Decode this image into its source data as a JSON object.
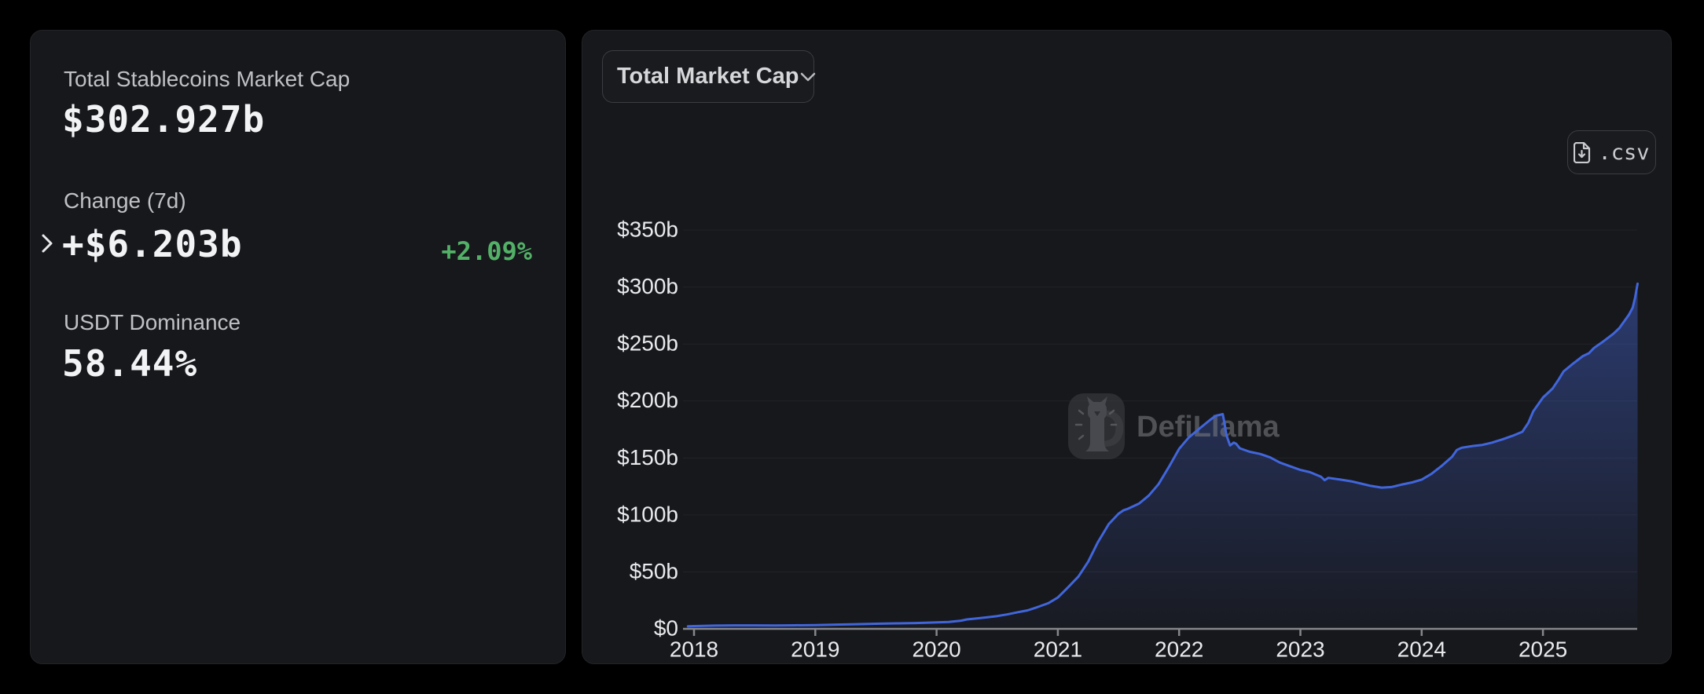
{
  "page": {
    "background": "#000000"
  },
  "stats_panel": {
    "market_cap": {
      "label": "Total Stablecoins Market Cap",
      "value": "$302.927b"
    },
    "change_7d": {
      "label": "Change (7d)",
      "value": "+$6.203b",
      "percent": "+2.09%",
      "percent_color": "#52b167"
    },
    "usdt_dominance": {
      "label": "USDT Dominance",
      "value": "58.44%"
    }
  },
  "chart_panel": {
    "metric_dropdown": {
      "label": "Total Market Cap"
    },
    "csv_button": {
      "label": ".csv"
    },
    "watermark": {
      "text": "DefiLlama"
    }
  },
  "chart_data": {
    "type": "area",
    "title": "Total Market Cap",
    "grid": "horizontal",
    "legend": "none",
    "line_color": "#4166dc",
    "area_gradient_top": "rgba(70,105,220,0.5)",
    "area_gradient_bottom": "rgba(70,105,220,0.03)",
    "axis_color": "#85878b",
    "grid_color": "rgba(255,255,255,0.05)",
    "tick_label_color": "#e9eaec",
    "x_axis": {
      "ticks": [
        {
          "t": 2018,
          "label": "2018"
        },
        {
          "t": 2019,
          "label": "2019"
        },
        {
          "t": 2020,
          "label": "2020"
        },
        {
          "t": 2021,
          "label": "2021"
        },
        {
          "t": 2022,
          "label": "2022"
        },
        {
          "t": 2023,
          "label": "2023"
        },
        {
          "t": 2024,
          "label": "2024"
        },
        {
          "t": 2025,
          "label": "2025"
        }
      ]
    },
    "y_axis": {
      "unit": "billions USD",
      "range": [
        0,
        350
      ],
      "ticks": [
        {
          "v": 0,
          "label": "$0"
        },
        {
          "v": 50,
          "label": "$50b"
        },
        {
          "v": 100,
          "label": "$100b"
        },
        {
          "v": 150,
          "label": "$150b"
        },
        {
          "v": 200,
          "label": "$200b"
        },
        {
          "v": 250,
          "label": "$250b"
        },
        {
          "v": 300,
          "label": "$300b"
        },
        {
          "v": 350,
          "label": "$350b"
        }
      ]
    },
    "series": [
      {
        "name": "Total Stablecoins Market Cap ($b)",
        "points": [
          [
            2017.95,
            2.2
          ],
          [
            2018,
            2.4
          ],
          [
            2018.17,
            2.8
          ],
          [
            2018.33,
            3
          ],
          [
            2018.5,
            3
          ],
          [
            2018.67,
            2.9
          ],
          [
            2018.83,
            3.1
          ],
          [
            2019,
            3.3
          ],
          [
            2019.17,
            3.7
          ],
          [
            2019.33,
            4.1
          ],
          [
            2019.5,
            4.5
          ],
          [
            2019.67,
            4.8
          ],
          [
            2019.83,
            5.1
          ],
          [
            2020,
            5.7
          ],
          [
            2020.1,
            6
          ],
          [
            2020.2,
            7.2
          ],
          [
            2020.25,
            8.3
          ],
          [
            2020.33,
            9.2
          ],
          [
            2020.42,
            10.2
          ],
          [
            2020.5,
            11.2
          ],
          [
            2020.58,
            12.6
          ],
          [
            2020.67,
            14.6
          ],
          [
            2020.75,
            16.2
          ],
          [
            2020.83,
            19
          ],
          [
            2020.92,
            22.5
          ],
          [
            2021,
            27.5
          ],
          [
            2021.08,
            36
          ],
          [
            2021.17,
            46
          ],
          [
            2021.25,
            59
          ],
          [
            2021.33,
            76
          ],
          [
            2021.42,
            92
          ],
          [
            2021.5,
            101
          ],
          [
            2021.54,
            104
          ],
          [
            2021.58,
            105.5
          ],
          [
            2021.67,
            110
          ],
          [
            2021.75,
            117
          ],
          [
            2021.83,
            127
          ],
          [
            2021.92,
            143
          ],
          [
            2022,
            158
          ],
          [
            2022.08,
            168
          ],
          [
            2022.17,
            176
          ],
          [
            2022.25,
            183
          ],
          [
            2022.3,
            187
          ],
          [
            2022.36,
            188.5
          ],
          [
            2022.37,
            183
          ],
          [
            2022.39,
            170
          ],
          [
            2022.42,
            161
          ],
          [
            2022.45,
            163.5
          ],
          [
            2022.47,
            162.5
          ],
          [
            2022.5,
            158.5
          ],
          [
            2022.58,
            155.5
          ],
          [
            2022.67,
            153.5
          ],
          [
            2022.75,
            150.5
          ],
          [
            2022.83,
            146
          ],
          [
            2022.92,
            142.5
          ],
          [
            2023,
            139.5
          ],
          [
            2023.08,
            137.5
          ],
          [
            2023.17,
            133.5
          ],
          [
            2023.2,
            130.5
          ],
          [
            2023.23,
            132.5
          ],
          [
            2023.33,
            131
          ],
          [
            2023.42,
            129.5
          ],
          [
            2023.5,
            127.5
          ],
          [
            2023.58,
            125.5
          ],
          [
            2023.67,
            124
          ],
          [
            2023.75,
            124.5
          ],
          [
            2023.83,
            126.5
          ],
          [
            2023.92,
            128.5
          ],
          [
            2024,
            131
          ],
          [
            2024.08,
            136
          ],
          [
            2024.17,
            143.5
          ],
          [
            2024.25,
            151
          ],
          [
            2024.29,
            157
          ],
          [
            2024.33,
            159
          ],
          [
            2024.42,
            160.5
          ],
          [
            2024.5,
            161.5
          ],
          [
            2024.58,
            163.5
          ],
          [
            2024.67,
            166.5
          ],
          [
            2024.75,
            169.5
          ],
          [
            2024.83,
            173
          ],
          [
            2024.88,
            181
          ],
          [
            2024.92,
            191
          ],
          [
            2025,
            203
          ],
          [
            2025.04,
            207
          ],
          [
            2025.08,
            211
          ],
          [
            2025.13,
            219
          ],
          [
            2025.17,
            226
          ],
          [
            2025.25,
            233
          ],
          [
            2025.33,
            239.5
          ],
          [
            2025.38,
            242
          ],
          [
            2025.42,
            246.5
          ],
          [
            2025.5,
            252.5
          ],
          [
            2025.58,
            259
          ],
          [
            2025.63,
            264
          ],
          [
            2025.67,
            270
          ],
          [
            2025.71,
            276
          ],
          [
            2025.74,
            282
          ],
          [
            2025.76,
            291
          ],
          [
            2025.78,
            303
          ]
        ]
      }
    ]
  }
}
